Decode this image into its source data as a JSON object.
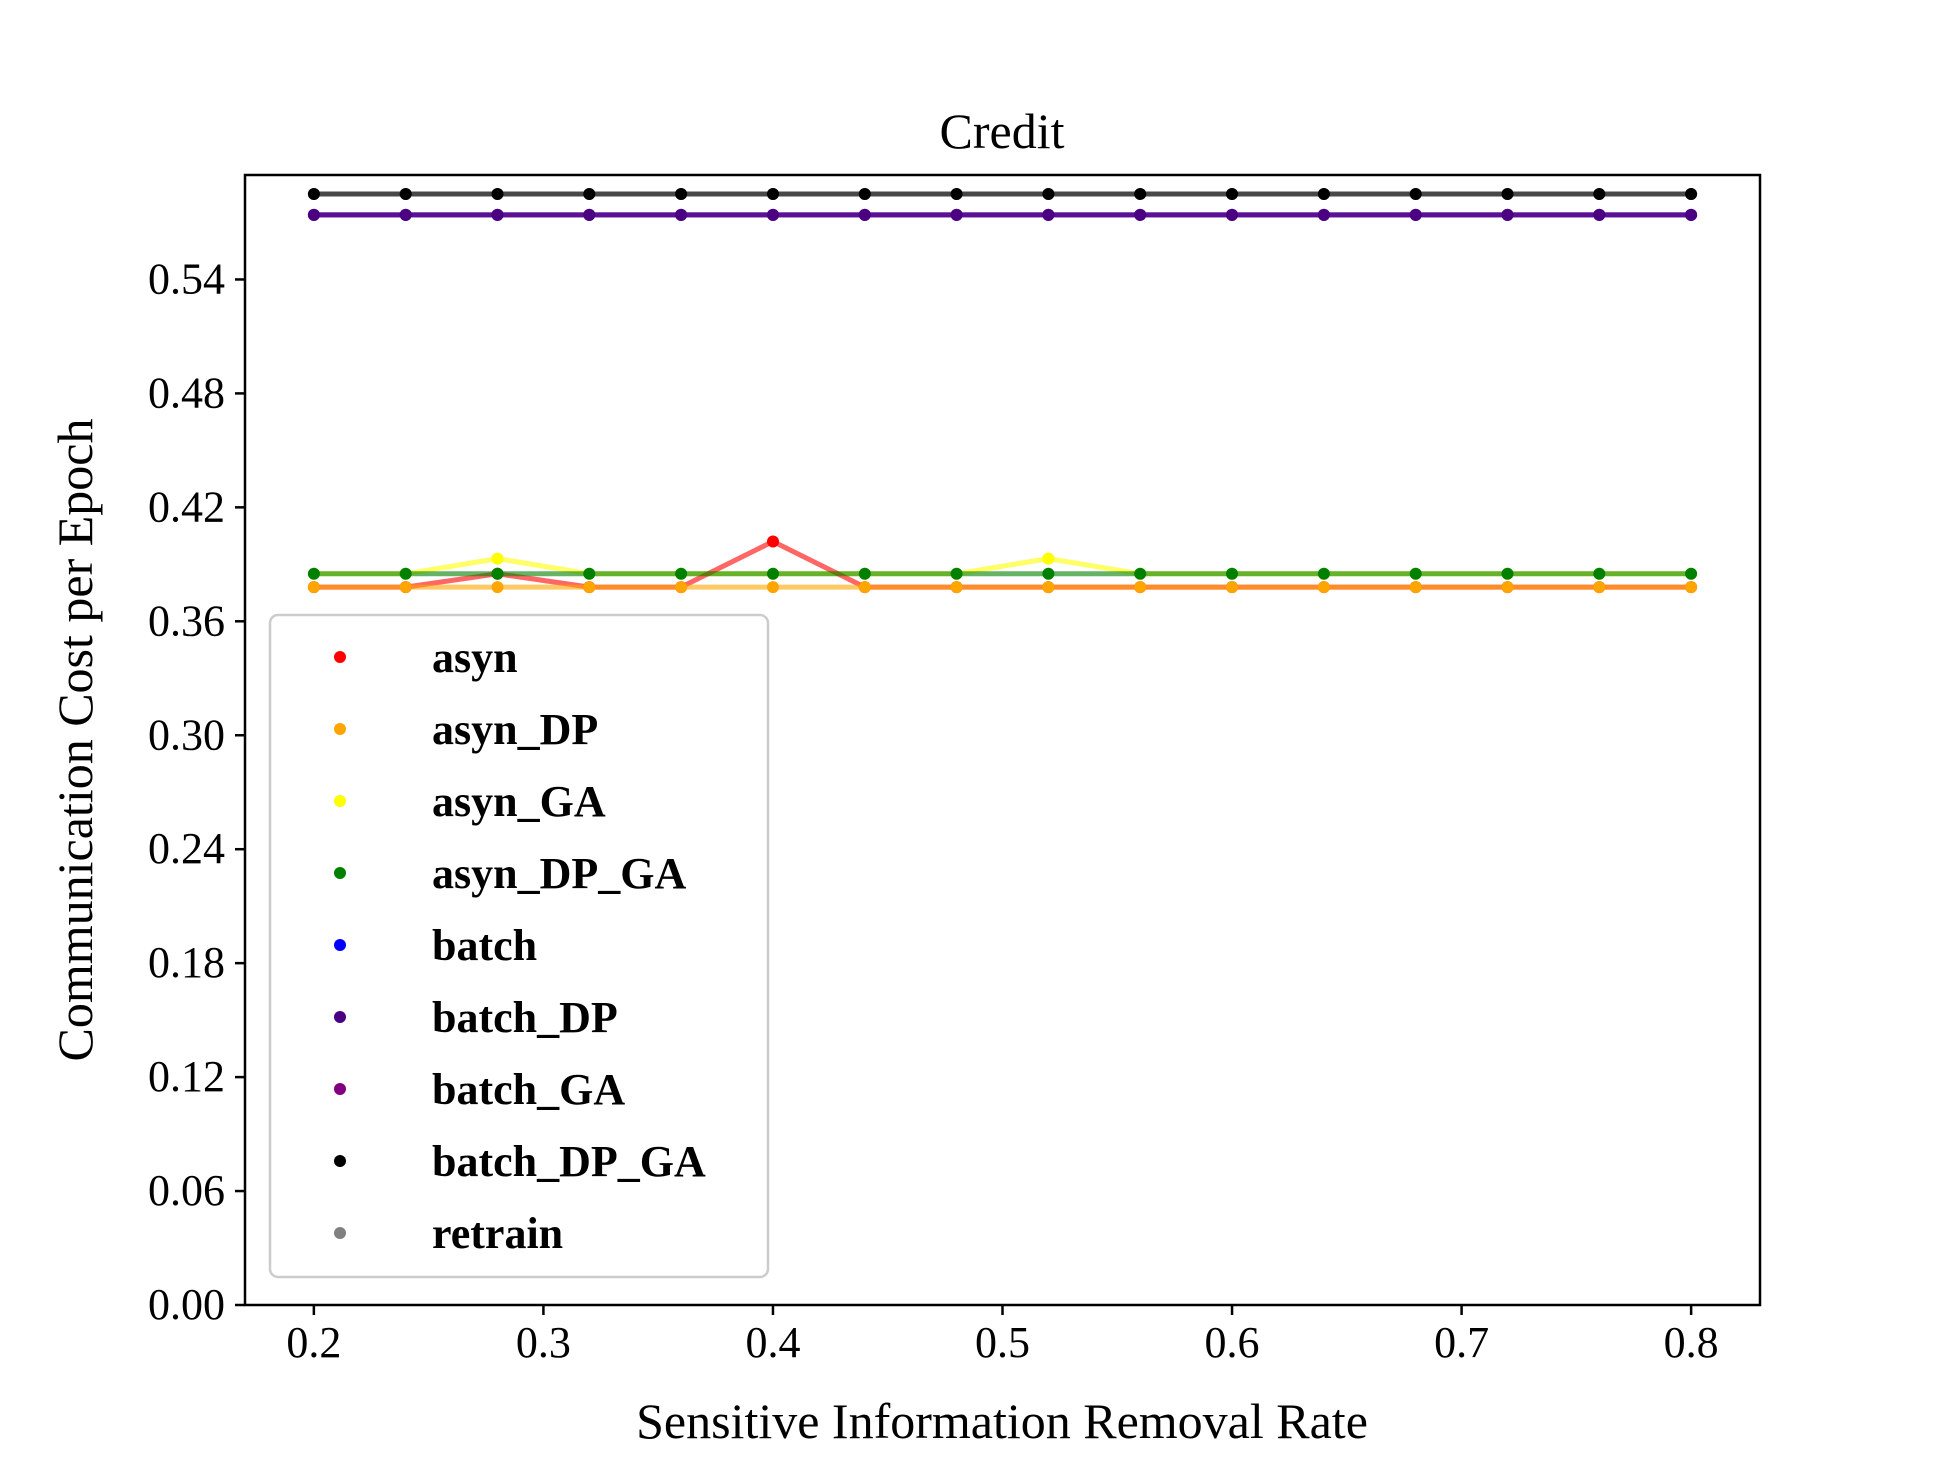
{
  "chart_data": {
    "type": "line",
    "title": "Credit",
    "xlabel": "Sensitive Information Removal Rate",
    "ylabel": "Communication Cost per Epoch",
    "xlim": [
      0.17,
      0.83
    ],
    "ylim": [
      0.0,
      0.595
    ],
    "xticks": [
      0.2,
      0.3,
      0.4,
      0.5,
      0.6,
      0.7,
      0.8
    ],
    "xtick_labels": [
      "0.2",
      "0.3",
      "0.4",
      "0.5",
      "0.6",
      "0.7",
      "0.8"
    ],
    "yticks": [
      0.0,
      0.06,
      0.12,
      0.18,
      0.24,
      0.3,
      0.36,
      0.42,
      0.48,
      0.54
    ],
    "ytick_labels": [
      "0.00",
      "0.06",
      "0.12",
      "0.18",
      "0.24",
      "0.30",
      "0.36",
      "0.42",
      "0.48",
      "0.54"
    ],
    "grid": false,
    "legend_position": "lower-left",
    "x": [
      0.2,
      0.24,
      0.28,
      0.32,
      0.36,
      0.4,
      0.44,
      0.48,
      0.52,
      0.56,
      0.6,
      0.64,
      0.68,
      0.72,
      0.76,
      0.8
    ],
    "series": [
      {
        "name": "retrain",
        "color": "#808080",
        "values": [
          0.585,
          0.585,
          0.585,
          0.585,
          0.585,
          0.585,
          0.585,
          0.585,
          0.585,
          0.585,
          0.585,
          0.585,
          0.585,
          0.585,
          0.585,
          0.585
        ]
      },
      {
        "name": "batch",
        "color": "#0000ff",
        "values": [
          0.574,
          0.574,
          0.574,
          0.574,
          0.574,
          0.574,
          0.574,
          0.574,
          0.574,
          0.574,
          0.574,
          0.574,
          0.574,
          0.574,
          0.574,
          0.574
        ]
      },
      {
        "name": "batch_GA",
        "color": "#800080",
        "values": [
          0.574,
          0.574,
          0.574,
          0.574,
          0.574,
          0.574,
          0.574,
          0.574,
          0.574,
          0.574,
          0.574,
          0.574,
          0.574,
          0.574,
          0.574,
          0.574
        ]
      },
      {
        "name": "batch_DP",
        "color": "#4b0082",
        "values": [
          0.574,
          0.574,
          0.574,
          0.574,
          0.574,
          0.574,
          0.574,
          0.574,
          0.574,
          0.574,
          0.574,
          0.574,
          0.574,
          0.574,
          0.574,
          0.574
        ]
      },
      {
        "name": "batch_DP_GA",
        "color": "#000000",
        "values": [
          0.585,
          0.585,
          0.585,
          0.585,
          0.585,
          0.585,
          0.585,
          0.585,
          0.585,
          0.585,
          0.585,
          0.585,
          0.585,
          0.585,
          0.585,
          0.585
        ]
      },
      {
        "name": "asyn_GA",
        "color": "#ffff00",
        "values": [
          0.385,
          0.385,
          0.393,
          0.385,
          0.385,
          0.385,
          0.385,
          0.385,
          0.393,
          0.385,
          0.385,
          0.385,
          0.385,
          0.385,
          0.385,
          0.385
        ]
      },
      {
        "name": "asyn",
        "color": "#ff0000",
        "values": [
          0.378,
          0.378,
          0.385,
          0.378,
          0.378,
          0.402,
          0.378,
          0.378,
          0.378,
          0.378,
          0.378,
          0.378,
          0.378,
          0.378,
          0.378,
          0.378
        ]
      },
      {
        "name": "asyn_DP",
        "color": "#ffa500",
        "values": [
          0.378,
          0.378,
          0.378,
          0.378,
          0.378,
          0.378,
          0.378,
          0.378,
          0.378,
          0.378,
          0.378,
          0.378,
          0.378,
          0.378,
          0.378,
          0.378
        ]
      },
      {
        "name": "asyn_DP_GA",
        "color": "#008000",
        "values": [
          0.385,
          0.385,
          0.385,
          0.385,
          0.385,
          0.385,
          0.385,
          0.385,
          0.385,
          0.385,
          0.385,
          0.385,
          0.385,
          0.385,
          0.385,
          0.385
        ]
      }
    ],
    "legend_order": [
      "asyn",
      "asyn_DP",
      "asyn_GA",
      "asyn_DP_GA",
      "batch",
      "batch_DP",
      "batch_GA",
      "batch_DP_GA",
      "retrain"
    ]
  }
}
